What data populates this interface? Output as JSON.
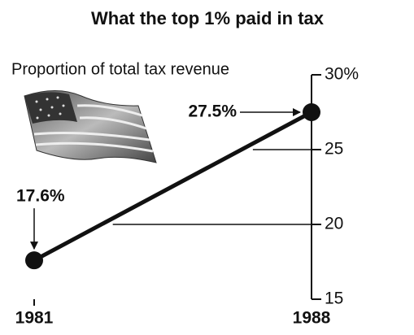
{
  "chart_data": {
    "type": "line",
    "title": "What the top 1% paid in tax",
    "subtitle": "Proportion of total tax revenue",
    "categories": [
      "1981",
      "1988"
    ],
    "values": [
      17.6,
      27.5
    ],
    "value_labels": [
      "17.6%",
      "27.5%"
    ],
    "color": "#111111",
    "ylim": [
      15,
      30
    ],
    "yticks": [
      {
        "value": 30,
        "label": "30%"
      },
      25,
      20,
      15
    ],
    "grid": true
  }
}
